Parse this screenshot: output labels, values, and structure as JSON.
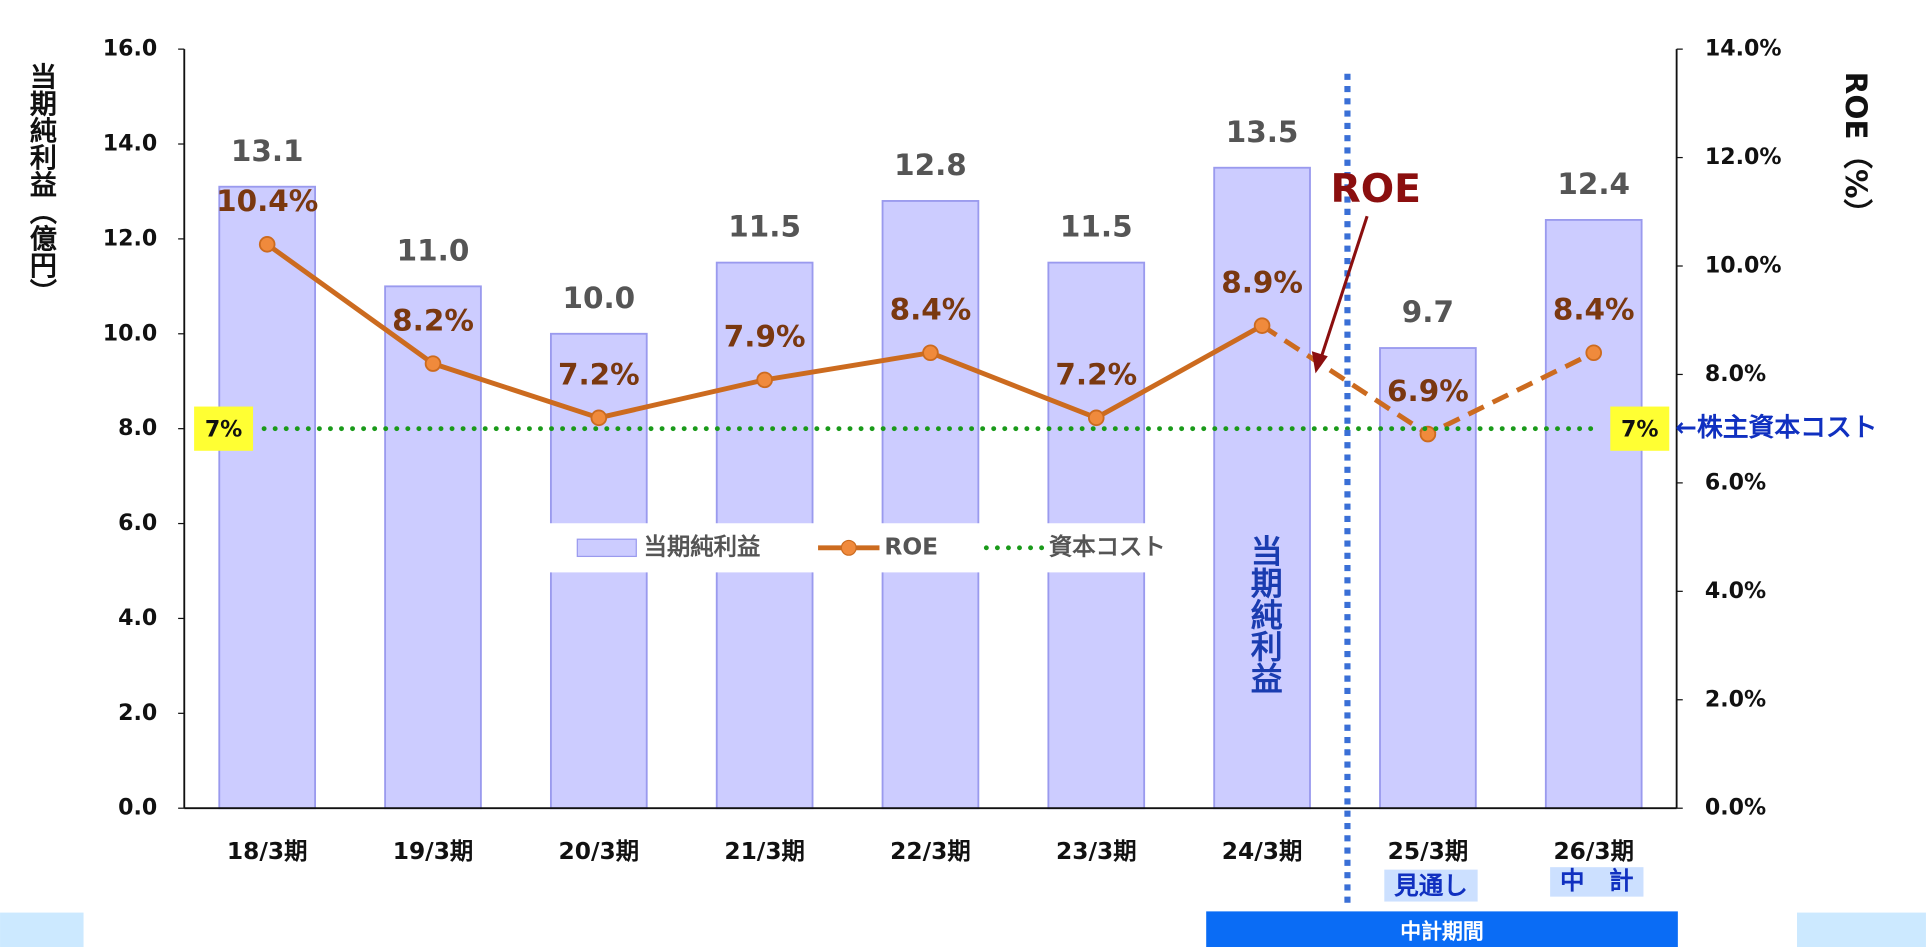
{
  "chart_data": {
    "type": "combo",
    "y_axis_title": "当期純利益（億円）",
    "y2_axis_title": "ROE（%）",
    "categories": [
      "18/3期",
      "19/3期",
      "20/3期",
      "21/3期",
      "22/3期",
      "23/3期",
      "24/3期",
      "25/3期",
      "26/3期"
    ],
    "series": [
      {
        "name": "当期純利益",
        "type": "bar",
        "color": "#ccccff",
        "axis": "y",
        "values": [
          13.1,
          11.0,
          10.0,
          11.5,
          12.8,
          11.5,
          13.5,
          9.7,
          12.4
        ],
        "value_labels": [
          "13.1",
          "11.0",
          "10.0",
          "11.5",
          "12.8",
          "11.5",
          "13.5",
          "9.7",
          "12.4"
        ]
      },
      {
        "name": "ROE",
        "type": "line",
        "color": "#cc6b1f",
        "axis": "y2",
        "dash_from": "24/3期",
        "values": [
          10.4,
          8.2,
          7.2,
          7.9,
          8.4,
          7.2,
          8.9,
          6.9,
          8.4
        ],
        "value_labels": [
          "10.4%",
          "8.2%",
          "7.2%",
          "7.9%",
          "8.4%",
          "7.2%",
          "8.9%",
          "6.9%",
          "8.4%"
        ]
      },
      {
        "name": "資本コスト",
        "type": "hline",
        "color": "#1a9a1a",
        "axis": "y2",
        "value": 7,
        "label": "7%"
      }
    ],
    "ylim": [
      0,
      16
    ],
    "yticks": [
      {
        "value": 0,
        "label": "0.0"
      },
      {
        "value": 2,
        "label": "2.0"
      },
      {
        "value": 4,
        "label": "4.0"
      },
      {
        "value": 6,
        "label": "6.0"
      },
      {
        "value": 8,
        "label": "8.0"
      },
      {
        "value": 10,
        "label": "10.0"
      },
      {
        "value": 12,
        "label": "12.0"
      },
      {
        "value": 14,
        "label": "14.0"
      },
      {
        "value": 16,
        "label": "16.0"
      }
    ],
    "y2lim": [
      0,
      14
    ],
    "y2ticks": [
      {
        "value": 0,
        "label": "0.0%"
      },
      {
        "value": 2,
        "label": "2.0%"
      },
      {
        "value": 4,
        "label": "4.0%"
      },
      {
        "value": 6,
        "label": "6.0%"
      },
      {
        "value": 8,
        "label": "8.0%"
      },
      {
        "value": 10,
        "label": "10.0%"
      },
      {
        "value": 12,
        "label": "12.0%"
      },
      {
        "value": 14,
        "label": "14.0%"
      }
    ],
    "annotations": {
      "roe_arrow": "ROE",
      "bar_note": "当期純利益",
      "cost_label": "←株主資本コスト",
      "forecast": "見通し",
      "plan": "中　計",
      "period": "中計期間"
    }
  }
}
